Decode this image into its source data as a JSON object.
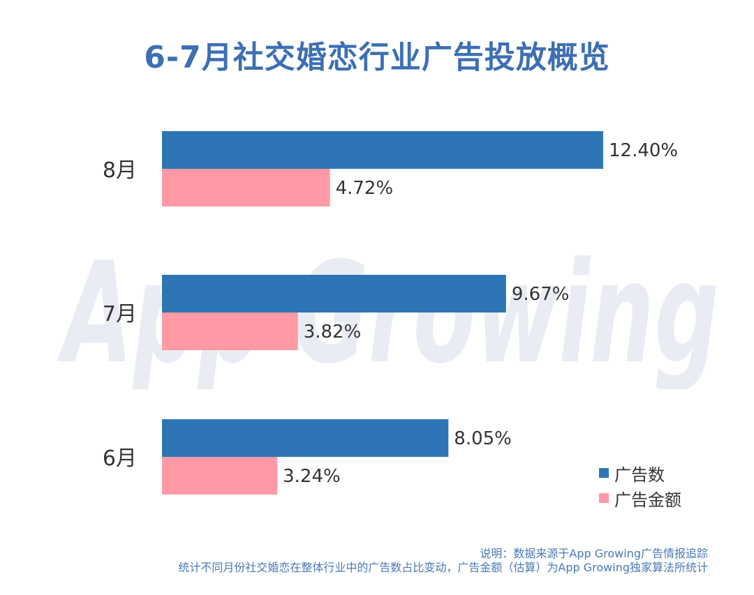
{
  "title": "6-7月社交婚恋行业广告投放概览",
  "watermark_text": "App Growing",
  "chart_data": {
    "type": "bar",
    "orientation": "horizontal",
    "categories": [
      "8月",
      "7月",
      "6月"
    ],
    "series": [
      {
        "name": "广告数",
        "values": [
          12.4,
          9.67,
          8.05
        ],
        "labels": [
          "12.40%",
          "9.67%",
          "8.05%"
        ],
        "color": "#2e75b6"
      },
      {
        "name": "广告金额",
        "values": [
          4.72,
          3.82,
          3.24
        ],
        "labels": [
          "4.72%",
          "3.82%",
          "3.24%"
        ],
        "color": "#ff99a6"
      }
    ],
    "xlim": [
      0,
      12.4
    ],
    "grid": false,
    "legend_position": "bottom-right"
  },
  "note": {
    "line1": "说明：数据来源于App Growing广告情报追踪",
    "line2": "统计不同月份社交婚恋在整体行业中的广告数占比变动，广告金额（估算）为App Growing独家算法所统计"
  }
}
